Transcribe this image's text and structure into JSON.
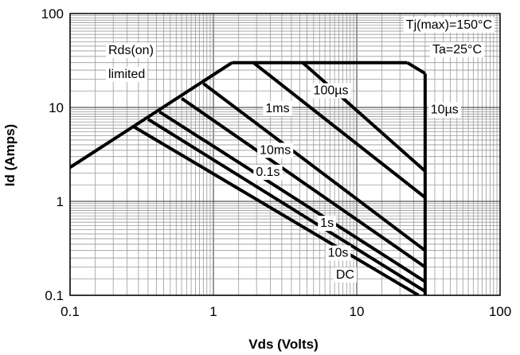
{
  "chart_data": {
    "type": "line",
    "title": "",
    "xlabel": "Vds (Volts)",
    "ylabel": "Id (Amps)",
    "xscale": "log",
    "yscale": "log",
    "xlim": [
      0.1,
      100
    ],
    "ylim": [
      0.1,
      100
    ],
    "x_ticks": [
      "0.1",
      "1",
      "10",
      "100"
    ],
    "y_ticks": [
      "0.1",
      "1",
      "10",
      "100"
    ],
    "grid": true,
    "conditions": [
      "Tj(max)=150°C",
      "Ta=25°C"
    ],
    "boundary_label": [
      "Rds(on)",
      "limited"
    ],
    "limits": {
      "rds_on": {
        "x": [
          0.1,
          1.35
        ],
        "y": [
          2.3,
          30
        ]
      },
      "current_max": {
        "x": [
          1.35,
          22.5
        ],
        "y": [
          30,
          30
        ]
      },
      "voltage_max": {
        "x": [
          30,
          30
        ],
        "y": [
          23,
          0.1
        ]
      }
    },
    "series": [
      {
        "name": "10µs",
        "x": [
          22.5,
          30
        ],
        "y": [
          30,
          23
        ]
      },
      {
        "name": "100µs",
        "x": [
          4.2,
          30
        ],
        "y": [
          30,
          2.1
        ]
      },
      {
        "name": "1ms",
        "x": [
          1.9,
          30
        ],
        "y": [
          30,
          1.1
        ]
      },
      {
        "name": "10ms",
        "x": [
          0.85,
          30
        ],
        "y": [
          18,
          0.3
        ]
      },
      {
        "name": "0.1s",
        "x": [
          0.6,
          30
        ],
        "y": [
          12.5,
          0.2
        ]
      },
      {
        "name": "1s",
        "x": [
          0.42,
          30
        ],
        "y": [
          9.0,
          0.14
        ]
      },
      {
        "name": "10s",
        "x": [
          0.35,
          30
        ],
        "y": [
          7.5,
          0.11
        ]
      },
      {
        "name": "DC",
        "x": [
          0.28,
          27
        ],
        "y": [
          6.2,
          0.1
        ]
      }
    ],
    "curve_labels": [
      {
        "text": "100µs",
        "x": 6.6,
        "y": 15.5
      },
      {
        "text": "10µs",
        "x": 41,
        "y": 9.7
      },
      {
        "text": "1ms",
        "x": 2.8,
        "y": 10
      },
      {
        "text": "10ms",
        "x": 2.7,
        "y": 3.6
      },
      {
        "text": "0.1s",
        "x": 2.4,
        "y": 2.1
      },
      {
        "text": "1s",
        "x": 6.2,
        "y": 0.6
      },
      {
        "text": "10s",
        "x": 7.4,
        "y": 0.29
      },
      {
        "text": "DC",
        "x": 8.3,
        "y": 0.17
      }
    ]
  }
}
